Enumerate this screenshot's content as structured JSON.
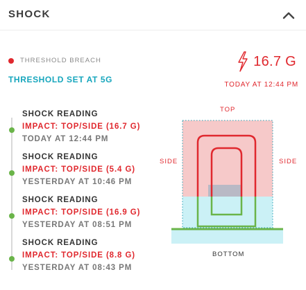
{
  "header": {
    "title": "SHOCK"
  },
  "icons": {
    "collapse": "chevron-up-icon",
    "shock": "lightning-bolt-icon"
  },
  "colors": {
    "alert_red": "#e0282e",
    "accent_teal": "#16a6bd",
    "status_green": "#6ab449",
    "zone_pink": "#f6c9c9",
    "zone_cyan": "#cbf1f6"
  },
  "status": {
    "breach_label": "THRESHOLD BREACH",
    "threshold_set": "THRESHOLD SET AT 5G",
    "current_value": "16.7 G",
    "current_time": "TODAY AT 12:44 PM"
  },
  "readings": [
    {
      "title": "SHOCK READING",
      "impact": "IMPACT: TOP/SIDE (16.7 G)",
      "time": "TODAY AT 12:44 PM"
    },
    {
      "title": "SHOCK READING",
      "impact": "IMPACT: TOP/SIDE (5.4 G)",
      "time": "YESTERDAY AT 10:46 PM"
    },
    {
      "title": "SHOCK READING",
      "impact": "IMPACT: TOP/SIDE (16.9 G)",
      "time": "YESTERDAY AT 08:51 PM"
    },
    {
      "title": "SHOCK READING",
      "impact": "IMPACT: TOP/SIDE (8.8 G)",
      "time": "YESTERDAY AT 08:43 PM"
    }
  ],
  "diagram": {
    "top_label": "TOP",
    "left_label": "SIDE",
    "right_label": "SIDE",
    "bottom_label": "BOTTOM"
  }
}
